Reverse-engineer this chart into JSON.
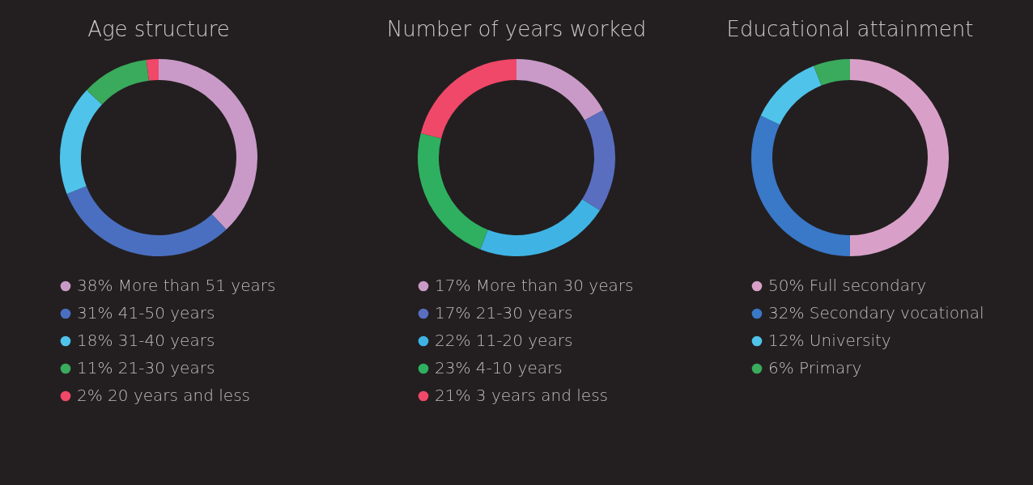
{
  "chart_data": [
    {
      "type": "donut",
      "title": "Age structure",
      "categories": [
        "More than 51 years",
        "41-50 years",
        "31-40 years",
        "21-30 years",
        "20 years and less"
      ],
      "values": [
        38,
        31,
        18,
        11,
        2
      ],
      "value_labels": [
        "38%",
        "31%",
        "18%",
        "11%",
        "2%"
      ],
      "colors": [
        "#c99ac8",
        "#4a6fc0",
        "#4fc3ea",
        "#3aaa5c",
        "#f04868"
      ],
      "legend": "bottom"
    },
    {
      "type": "donut",
      "title": "Number of years worked",
      "categories": [
        "More than 30 years",
        "21-30 years",
        "11-20 years",
        "4-10 years",
        "3 years and less"
      ],
      "values": [
        17,
        17,
        22,
        23,
        21
      ],
      "value_labels": [
        "17%",
        "17%",
        "22%",
        "23%",
        "21%"
      ],
      "colors": [
        "#c99ac8",
        "#5a6ec0",
        "#3fb4e4",
        "#2fb060",
        "#f04868"
      ],
      "legend": "bottom"
    },
    {
      "type": "donut",
      "title": "Educational attainment",
      "categories": [
        "Full secondary",
        "Secondary vocational",
        "University",
        "Primary"
      ],
      "values": [
        50,
        32,
        12,
        6
      ],
      "value_labels": [
        "50%",
        "32%",
        "12%",
        "6%"
      ],
      "colors": [
        "#d8a0c8",
        "#3a78c8",
        "#4fc3ea",
        "#3aaa5c"
      ],
      "legend": "bottom"
    }
  ]
}
